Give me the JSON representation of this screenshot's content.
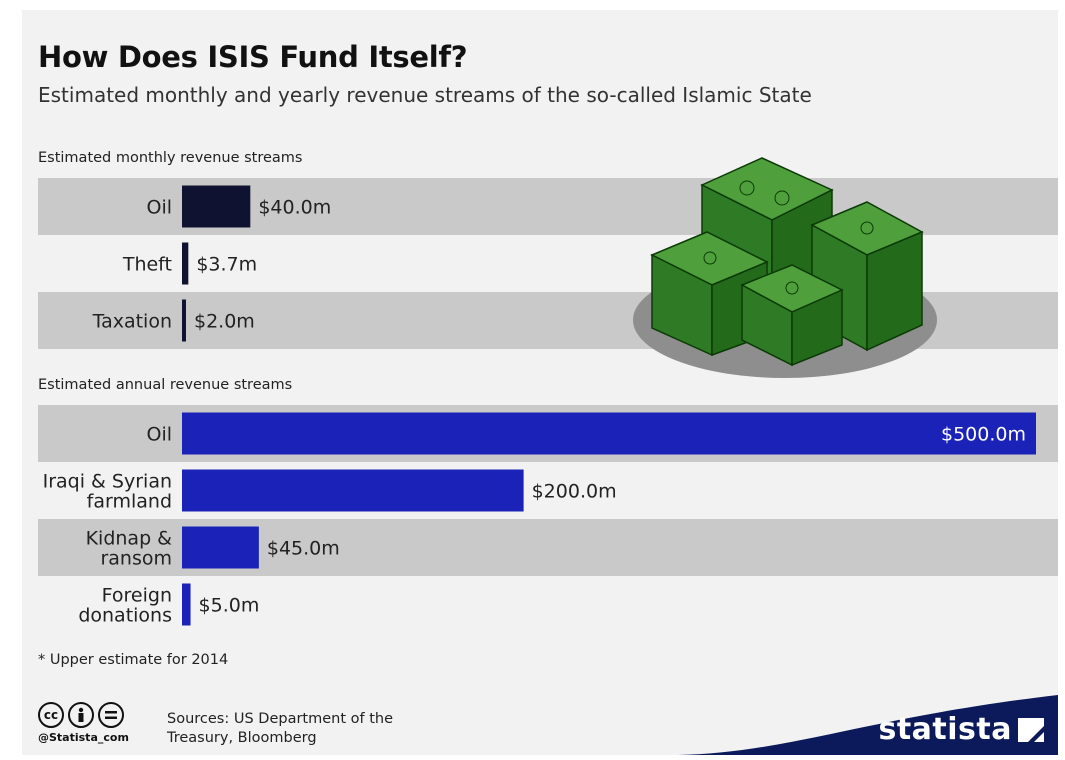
{
  "header": {
    "title": "How Does ISIS Fund Itself?",
    "subtitle": "Estimated monthly and yearly revenue streams of the so-called Islamic State"
  },
  "chart_data": [
    {
      "type": "bar",
      "orientation": "horizontal",
      "title": "Estimated monthly revenue streams",
      "categories": [
        "Oil",
        "Theft",
        "Taxation"
      ],
      "values": [
        40.0,
        3.7,
        2.0
      ],
      "value_labels": [
        "$40.0m",
        "$3.7m",
        "$2.0m"
      ],
      "unit": "million USD",
      "bar_color": "#0f1230"
    },
    {
      "type": "bar",
      "orientation": "horizontal",
      "title": "Estimated annual revenue streams",
      "categories": [
        "Oil",
        "Iraqi & Syrian farmland",
        "Kidnap & ransom",
        "Foreign donations"
      ],
      "category_lines": [
        [
          "Oil"
        ],
        [
          "Iraqi & Syrian",
          "farmland"
        ],
        [
          "Kidnap &",
          "ransom"
        ],
        [
          "Foreign",
          "donations"
        ]
      ],
      "values": [
        500.0,
        200.0,
        45.0,
        5.0
      ],
      "value_labels": [
        "$500.0m",
        "$200.0m",
        "$45.0m",
        "$5.0m"
      ],
      "unit": "million USD",
      "bar_color": "#1a22b8"
    }
  ],
  "footer": {
    "footnote": "* Upper estimate for 2014",
    "handle": "@Statista_com",
    "sources_line1": "Sources: US Department of the",
    "sources_line2": "Treasury, Bloomberg",
    "brand": "statista",
    "brand_color": "#0c1a5b"
  },
  "icons": [
    "cc-icon",
    "attribution-icon",
    "no-derivatives-icon",
    "money-stack-illustration",
    "statista-logo-icon"
  ]
}
